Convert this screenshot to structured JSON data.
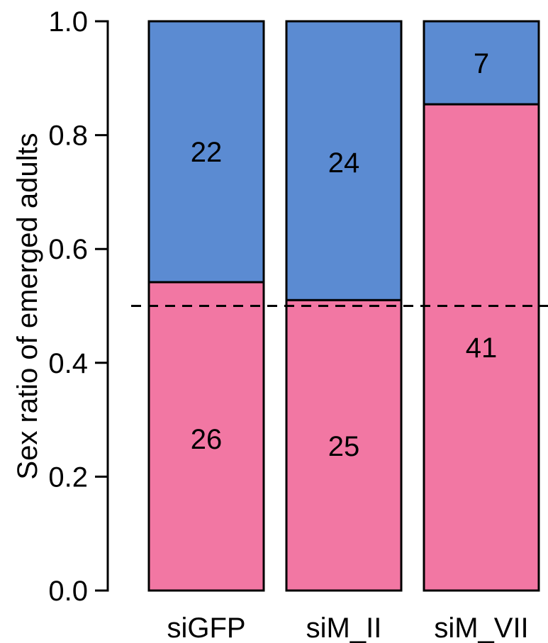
{
  "chart_data": {
    "type": "bar",
    "stacked": true,
    "ylabel": "Sex ratio of emerged adults",
    "xlabel": "",
    "ylim": [
      0,
      1.0
    ],
    "yticks": [
      0.0,
      0.2,
      0.4,
      0.6,
      0.8,
      1.0
    ],
    "ytick_labels": [
      "0.0",
      "0.2",
      "0.4",
      "0.6",
      "0.8",
      "1.0"
    ],
    "categories": [
      "siGFP",
      "siM_II",
      "siM_VII"
    ],
    "reference_line": {
      "y": 0.5,
      "style": "dashed"
    },
    "series": [
      {
        "color": "#F277A3",
        "values": [
          0.5417,
          0.5102,
          0.8542
        ],
        "counts": [
          "26",
          "25",
          "41"
        ]
      },
      {
        "color": "#5B8BD2",
        "values": [
          0.4583,
          0.4898,
          0.1458
        ],
        "counts": [
          "22",
          "24",
          "7"
        ]
      }
    ],
    "grid": false,
    "legend": "none"
  }
}
